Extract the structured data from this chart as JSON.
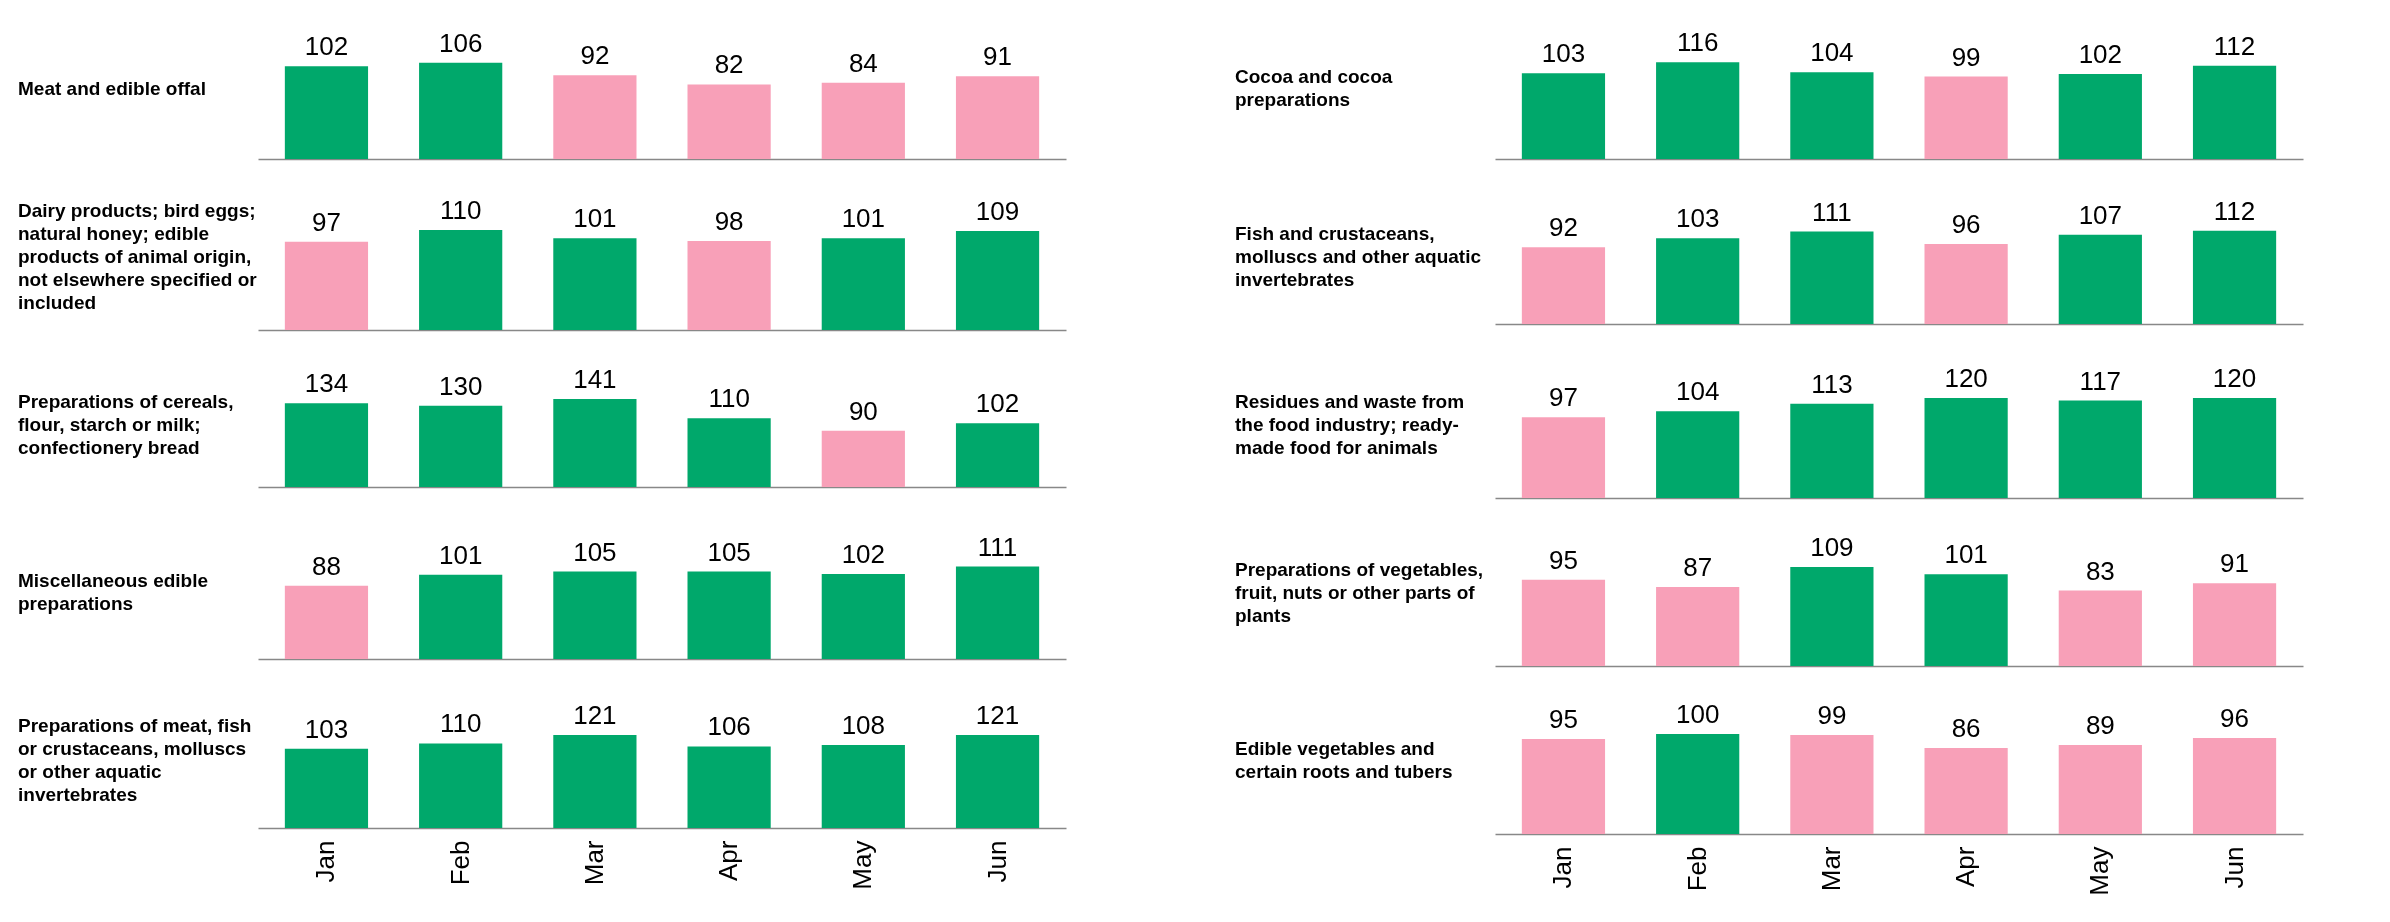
{
  "chart_data": [
    {
      "type": "bar",
      "title": "Meat and edible offal",
      "categories": [
        null,
        null,
        null,
        null,
        null,
        null
      ],
      "values": [
        102,
        106,
        92,
        82,
        84,
        91
      ],
      "colors": [
        "#00a86b",
        "#00a86b",
        "#f8a0b8",
        "#f8a0b8",
        "#f8a0b8",
        "#f8a0b8"
      ],
      "data_labels": true
    },
    {
      "type": "bar",
      "title": "Cocoa and cocoa preparations",
      "categories": [
        null,
        null,
        null,
        null,
        null,
        null
      ],
      "values": [
        103,
        116,
        104,
        99,
        102,
        112
      ],
      "colors": [
        "#00a86b",
        "#00a86b",
        "#00a86b",
        "#f8a0b8",
        "#00a86b",
        "#00a86b"
      ],
      "data_labels": true
    },
    {
      "type": "bar",
      "title": "Dairy products; bird eggs; natural honey; edible products of animal origin, not elsewhere specified or included",
      "categories": [
        null,
        null,
        null,
        null,
        null,
        null
      ],
      "values": [
        97,
        110,
        101,
        98,
        101,
        109
      ],
      "colors": [
        "#f8a0b8",
        "#00a86b",
        "#00a86b",
        "#f8a0b8",
        "#00a86b",
        "#00a86b"
      ],
      "data_labels": true
    },
    {
      "type": "bar",
      "title": "Fish and crustaceans, molluscs and other aquatic invertebrates",
      "categories": [
        null,
        null,
        null,
        null,
        null,
        null
      ],
      "values": [
        92,
        103,
        111,
        96,
        107,
        112
      ],
      "colors": [
        "#f8a0b8",
        "#00a86b",
        "#00a86b",
        "#f8a0b8",
        "#00a86b",
        "#00a86b"
      ],
      "data_labels": true
    },
    {
      "type": "bar",
      "title": "Preparations of cereals, flour, starch or milk; confectionery bread",
      "categories": [
        null,
        null,
        null,
        null,
        null,
        null
      ],
      "values": [
        134,
        130,
        141,
        110,
        90,
        102
      ],
      "colors": [
        "#00a86b",
        "#00a86b",
        "#00a86b",
        "#00a86b",
        "#f8a0b8",
        "#00a86b"
      ],
      "data_labels": true
    },
    {
      "type": "bar",
      "title": "Residues and waste from the food industry; ready-made food for animals",
      "categories": [
        null,
        null,
        null,
        null,
        null,
        null
      ],
      "values": [
        97,
        104,
        113,
        120,
        117,
        120
      ],
      "colors": [
        "#f8a0b8",
        "#00a86b",
        "#00a86b",
        "#00a86b",
        "#00a86b",
        "#00a86b"
      ],
      "data_labels": true
    },
    {
      "type": "bar",
      "title": "Miscellaneous edible preparations",
      "categories": [
        null,
        null,
        null,
        null,
        null,
        null
      ],
      "values": [
        88,
        101,
        105,
        105,
        102,
        111
      ],
      "colors": [
        "#f8a0b8",
        "#00a86b",
        "#00a86b",
        "#00a86b",
        "#00a86b",
        "#00a86b"
      ],
      "data_labels": true
    },
    {
      "type": "bar",
      "title": "Preparations of vegetables, fruit, nuts or other parts of plants",
      "categories": [
        null,
        null,
        null,
        null,
        null,
        null
      ],
      "values": [
        95,
        87,
        109,
        101,
        83,
        91
      ],
      "colors": [
        "#f8a0b8",
        "#f8a0b8",
        "#00a86b",
        "#00a86b",
        "#f8a0b8",
        "#f8a0b8"
      ],
      "data_labels": true
    },
    {
      "type": "bar",
      "title": "Preparations of meat, fish or crustaceans, molluscs or other aquatic invertebrates",
      "categories": [
        "Jan",
        "Feb",
        "Mar",
        "Apr",
        "May",
        "Jun"
      ],
      "values": [
        103,
        110,
        121,
        106,
        108,
        121
      ],
      "colors": [
        "#00a86b",
        "#00a86b",
        "#00a86b",
        "#00a86b",
        "#00a86b",
        "#00a86b"
      ],
      "data_labels": true
    },
    {
      "type": "bar",
      "title": "Edible vegetables and certain roots and tubers",
      "categories": [
        "Jan",
        "Feb",
        "Mar",
        "Apr",
        "May",
        "Jun"
      ],
      "values": [
        95,
        100,
        99,
        86,
        89,
        96
      ],
      "colors": [
        "#f8a0b8",
        "#00a86b",
        "#f8a0b8",
        "#f8a0b8",
        "#f8a0b8",
        "#f8a0b8"
      ],
      "data_labels": true
    }
  ]
}
